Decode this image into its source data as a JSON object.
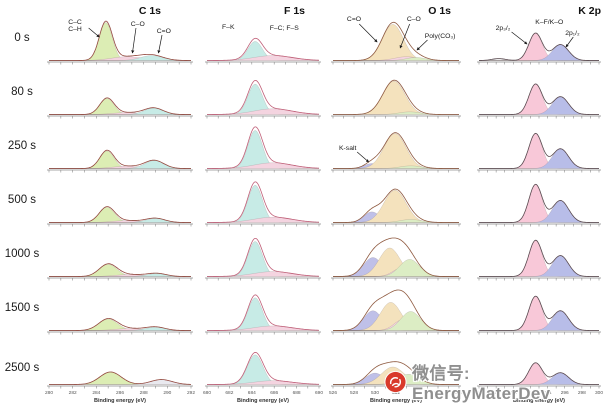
{
  "row_labels": [
    "0 s",
    "80 s",
    "250 s",
    "500 s",
    "1000 s",
    "1500 s",
    "2500 s"
  ],
  "watermark": {
    "label": "微信号: EnergyMaterDev",
    "icon": "wechat-red-seal",
    "icon_color": "#d93a2b"
  },
  "chart_data": [
    {
      "type": "area",
      "title": "C 1s",
      "xlabel": "Binding energy (eV)",
      "axis": {
        "min": 280,
        "max": 292,
        "tick_step": 1,
        "label_step": 2,
        "unit": "eV"
      },
      "stroke": "#94493f",
      "components_legend": {
        "#dcedb4": "C–C / C–H",
        "#f4d4e0": "C–O",
        "#c7ebe6": "C=O"
      },
      "annotations": [
        {
          "row": 0,
          "text": "C–C\nC–H",
          "x": 282.2,
          "y": 8,
          "arrow": [
            283.35,
            12,
            284.25,
            21
          ]
        },
        {
          "row": 0,
          "text": "C–O",
          "x": 287.5,
          "y": 10,
          "arrow": [
            287.35,
            12,
            287.05,
            37
          ]
        },
        {
          "row": 0,
          "text": "C=O",
          "x": 289.7,
          "y": 17,
          "arrow": [
            289.55,
            19,
            289.25,
            37
          ]
        }
      ],
      "panels": [
        [
          {
            "c": 284.8,
            "s": 0.55,
            "a": 1.0,
            "f": "#dcedb4"
          },
          {
            "c": 286.6,
            "s": 1.3,
            "a": 0.1,
            "f": "#f4d4e0"
          },
          {
            "c": 288.7,
            "s": 0.95,
            "a": 0.13,
            "f": "#c7ebe6"
          }
        ],
        [
          {
            "c": 284.9,
            "s": 0.6,
            "a": 0.42,
            "f": "#dcedb4"
          },
          {
            "c": 286.6,
            "s": 1.2,
            "a": 0.05,
            "f": "#f4d4e0"
          },
          {
            "c": 288.85,
            "s": 0.8,
            "a": 0.17,
            "f": "#c7ebe6"
          }
        ],
        [
          {
            "c": 284.9,
            "s": 0.6,
            "a": 0.46,
            "f": "#dcedb4"
          },
          {
            "c": 286.6,
            "s": 1.2,
            "a": 0.06,
            "f": "#f4d4e0"
          },
          {
            "c": 288.9,
            "s": 0.8,
            "a": 0.21,
            "f": "#c7ebe6"
          }
        ],
        [
          {
            "c": 284.9,
            "s": 0.65,
            "a": 0.4,
            "f": "#dcedb4"
          },
          {
            "c": 286.6,
            "s": 1.2,
            "a": 0.05,
            "f": "#f4d4e0"
          },
          {
            "c": 289.0,
            "s": 0.8,
            "a": 0.11,
            "f": "#c7ebe6"
          }
        ],
        [
          {
            "c": 285.0,
            "s": 0.75,
            "a": 0.32,
            "f": "#dcedb4"
          },
          {
            "c": 286.8,
            "s": 1.2,
            "a": 0.05,
            "f": "#f4d4e0"
          },
          {
            "c": 289.1,
            "s": 0.8,
            "a": 0.08,
            "f": "#c7ebe6"
          }
        ],
        [
          {
            "c": 285.0,
            "s": 0.8,
            "a": 0.3,
            "f": "#dcedb4"
          },
          {
            "c": 286.8,
            "s": 1.2,
            "a": 0.05,
            "f": "#f4d4e0"
          },
          {
            "c": 289.0,
            "s": 0.8,
            "a": 0.09,
            "f": "#c7ebe6"
          }
        ],
        [
          {
            "c": 285.2,
            "s": 0.9,
            "a": 0.33,
            "f": "#dcedb4"
          },
          {
            "c": 289.5,
            "s": 0.9,
            "a": 0.13,
            "f": "#e9e9ef"
          }
        ]
      ]
    },
    {
      "type": "area",
      "title": "F 1s",
      "xlabel": "Binding energy (eV)",
      "axis": {
        "min": 680,
        "max": 690,
        "tick_step": 1,
        "label_step": 2,
        "unit": "eV"
      },
      "stroke": "#c05f78",
      "components_legend": {
        "#c7ebe6": "F–K",
        "#f4d4e0": "F–C; F–S"
      },
      "annotations": [
        {
          "row": 0,
          "text": "F–K",
          "x": 681.9,
          "y": 13
        },
        {
          "row": 0,
          "text": "F–C; F–S",
          "x": 686.9,
          "y": 14
        }
      ],
      "panels": [
        [
          {
            "c": 684.3,
            "s": 0.65,
            "a": 0.5,
            "f": "#c7ebe6"
          },
          {
            "c": 685.9,
            "s": 1.7,
            "a": 0.13,
            "f": "#f4d4e0"
          }
        ],
        [
          {
            "c": 684.3,
            "s": 0.65,
            "a": 0.8,
            "f": "#c7ebe6"
          },
          {
            "c": 685.9,
            "s": 1.7,
            "a": 0.15,
            "f": "#f4d4e0"
          }
        ],
        [
          {
            "c": 684.3,
            "s": 0.65,
            "a": 1.0,
            "f": "#c7ebe6"
          },
          {
            "c": 685.9,
            "s": 1.7,
            "a": 0.15,
            "f": "#f4d4e0"
          }
        ],
        [
          {
            "c": 684.3,
            "s": 0.65,
            "a": 0.98,
            "f": "#c7ebe6"
          },
          {
            "c": 685.9,
            "s": 1.7,
            "a": 0.14,
            "f": "#f4d4e0"
          }
        ],
        [
          {
            "c": 684.3,
            "s": 0.65,
            "a": 0.92,
            "f": "#c7ebe6"
          },
          {
            "c": 685.9,
            "s": 1.7,
            "a": 0.13,
            "f": "#f4d4e0"
          }
        ],
        [
          {
            "c": 684.3,
            "s": 0.65,
            "a": 0.86,
            "f": "#c7ebe6"
          },
          {
            "c": 685.9,
            "s": 1.7,
            "a": 0.12,
            "f": "#f4d4e0"
          }
        ],
        [
          {
            "c": 684.3,
            "s": 0.7,
            "a": 0.78,
            "f": "#c7ebe6"
          },
          {
            "c": 685.9,
            "s": 1.7,
            "a": 0.1,
            "f": "#f4d4e0"
          }
        ]
      ]
    },
    {
      "type": "area",
      "title": "O 1s",
      "xlabel": "Binding energy (eV)",
      "axis": {
        "min": 526,
        "max": 538,
        "tick_step": 1,
        "label_step": 2,
        "unit": "eV"
      },
      "stroke": "#8f5a40",
      "components_legend": {
        "#f4e2bd": "C=O",
        "#f4d4e0": "C–O",
        "#dcedc4": "Poly(CO₃)",
        "#bfc0e8": "K-salt"
      },
      "annotations": [
        {
          "row": 0,
          "text": "C=O",
          "x": 528.0,
          "y": 5,
          "arrow": [
            528.5,
            8,
            530.2,
            26
          ]
        },
        {
          "row": 0,
          "text": "C–O",
          "x": 533.7,
          "y": 5,
          "arrow": [
            533.3,
            8,
            532.4,
            32
          ]
        },
        {
          "row": 0,
          "text": "Poly(CO₃)",
          "x": 536.2,
          "y": 22,
          "arrow": [
            535.0,
            24,
            534.0,
            34
          ]
        },
        {
          "row": 2,
          "text": "K-salt",
          "x": 527.4,
          "y": 26,
          "arrow": [
            528.3,
            28,
            529.4,
            38
          ]
        }
      ],
      "panels": [
        [
          {
            "c": 531.7,
            "s": 1.0,
            "a": 0.95,
            "f": "#f4e2bd"
          },
          {
            "c": 533.0,
            "s": 1.1,
            "a": 0.1,
            "f": "#f4d4e0"
          },
          {
            "c": 533.9,
            "s": 0.9,
            "a": 0.08,
            "f": "#dcedc4"
          }
        ],
        [
          {
            "c": 531.8,
            "s": 1.05,
            "a": 0.88,
            "f": "#f4e2bd"
          },
          {
            "c": 533.3,
            "s": 1.0,
            "a": 0.07,
            "f": "#dcedc4"
          }
        ],
        [
          {
            "c": 529.7,
            "s": 0.7,
            "a": 0.13,
            "f": "#bfc0e8"
          },
          {
            "c": 531.9,
            "s": 1.05,
            "a": 0.92,
            "f": "#f4e2bd"
          },
          {
            "c": 533.4,
            "s": 1.0,
            "a": 0.07,
            "f": "#dcedc4"
          }
        ],
        [
          {
            "c": 529.7,
            "s": 0.75,
            "a": 0.28,
            "f": "#bfc0e8"
          },
          {
            "c": 531.9,
            "s": 1.05,
            "a": 0.85,
            "f": "#f4e2bd"
          },
          {
            "c": 533.4,
            "s": 1.0,
            "a": 0.08,
            "f": "#dcedc4"
          }
        ],
        [
          {
            "c": 529.8,
            "s": 0.9,
            "a": 0.5,
            "f": "#bfc0e8"
          },
          {
            "c": 531.4,
            "s": 1.0,
            "a": 0.75,
            "f": "#f4e2bd"
          },
          {
            "c": 532.5,
            "s": 0.8,
            "a": 0.22,
            "f": "#f4d4e0"
          },
          {
            "c": 533.3,
            "s": 0.95,
            "a": 0.45,
            "f": "#dcedc4"
          }
        ],
        [
          {
            "c": 529.8,
            "s": 0.9,
            "a": 0.52,
            "f": "#bfc0e8"
          },
          {
            "c": 531.5,
            "s": 1.0,
            "a": 0.74,
            "f": "#f4e2bd"
          },
          {
            "c": 532.6,
            "s": 0.8,
            "a": 0.28,
            "f": "#f4d4e0"
          },
          {
            "c": 533.4,
            "s": 0.95,
            "a": 0.5,
            "f": "#dcedc4"
          }
        ],
        [
          {
            "c": 530.0,
            "s": 0.9,
            "a": 0.3,
            "f": "#bfc0e8"
          },
          {
            "c": 531.7,
            "s": 1.1,
            "a": 0.46,
            "f": "#f4e2bd"
          },
          {
            "c": 533.2,
            "s": 1.0,
            "a": 0.27,
            "f": "#dcedc4"
          }
        ]
      ]
    },
    {
      "type": "area",
      "title": "K 2p",
      "xlabel": "Binding energy (eV)",
      "axis": {
        "min": 286,
        "max": 300,
        "tick_step": 1,
        "label_step": 2,
        "unit": "eV"
      },
      "stroke": "#5a4a50",
      "components_legend": {
        "#f8c8d8": "2p₃/₂ (K–F/K–O)",
        "#b8bde8": "2p₁/₂ (K–F/K–O)"
      },
      "annotations": [
        {
          "row": 0,
          "text": "2p₃/₂",
          "x": 288.8,
          "y": 14,
          "arrow": [
            289.8,
            16,
            291.6,
            28
          ]
        },
        {
          "row": 0,
          "text": "K–F/K–O",
          "x": 294.2,
          "y": 8
        },
        {
          "row": 0,
          "text": "2p₁/₂",
          "x": 296.9,
          "y": 19,
          "arrow": [
            297.0,
            21,
            296.15,
            31
          ]
        }
      ],
      "panels": [
        [
          {
            "c": 288.3,
            "s": 0.8,
            "a": 0.05,
            "f": "#ececec"
          },
          {
            "c": 292.6,
            "s": 0.78,
            "a": 0.72,
            "f": "#f8c8d8"
          },
          {
            "c": 295.5,
            "s": 0.95,
            "a": 0.42,
            "f": "#b8bde8"
          }
        ],
        [
          {
            "c": 292.6,
            "s": 0.78,
            "a": 0.8,
            "f": "#f8c8d8"
          },
          {
            "c": 295.5,
            "s": 0.95,
            "a": 0.47,
            "f": "#b8bde8"
          }
        ],
        [
          {
            "c": 292.6,
            "s": 0.78,
            "a": 0.92,
            "f": "#f8c8d8"
          },
          {
            "c": 295.5,
            "s": 0.95,
            "a": 0.52,
            "f": "#b8bde8"
          }
        ],
        [
          {
            "c": 292.6,
            "s": 0.78,
            "a": 1.0,
            "f": "#f8c8d8"
          },
          {
            "c": 295.5,
            "s": 0.95,
            "a": 0.58,
            "f": "#b8bde8"
          }
        ],
        [
          {
            "c": 292.6,
            "s": 0.78,
            "a": 0.95,
            "f": "#f8c8d8"
          },
          {
            "c": 295.5,
            "s": 0.95,
            "a": 0.55,
            "f": "#b8bde8"
          }
        ],
        [
          {
            "c": 292.6,
            "s": 0.78,
            "a": 0.9,
            "f": "#f8c8d8"
          },
          {
            "c": 295.5,
            "s": 0.95,
            "a": 0.52,
            "f": "#b8bde8"
          }
        ],
        [
          {
            "c": 292.6,
            "s": 0.8,
            "a": 0.57,
            "f": "#f8c8d8"
          },
          {
            "c": 295.5,
            "s": 0.95,
            "a": 0.31,
            "f": "#b8bde8"
          }
        ]
      ]
    }
  ]
}
